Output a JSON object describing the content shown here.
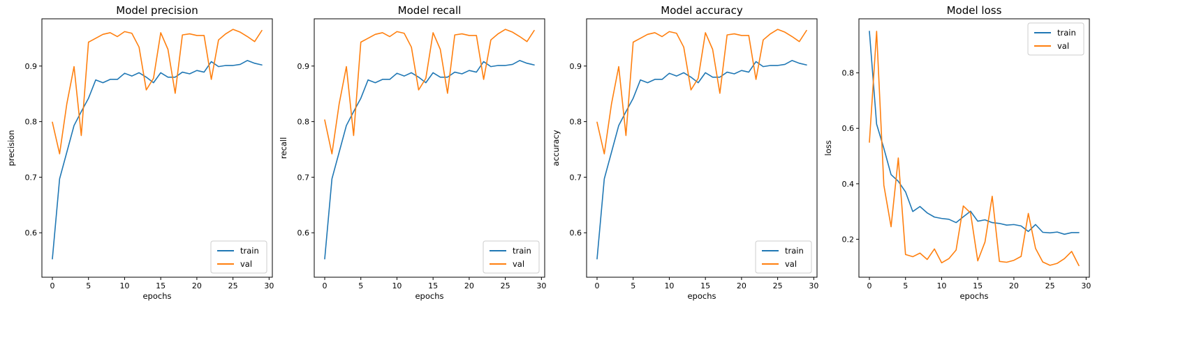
{
  "chart_data": [
    {
      "type": "line",
      "title": "Model precision",
      "xlabel": "epochs",
      "ylabel": "precision",
      "xlim": [
        -1.45,
        30.45
      ],
      "ylim": [
        0.52,
        0.985
      ],
      "xticks": [
        0,
        5,
        10,
        15,
        20,
        25,
        30
      ],
      "yticks": [
        0.6,
        0.7,
        0.8,
        0.9
      ],
      "ytick_labels": [
        "0.6",
        "0.7",
        "0.8",
        "0.9"
      ],
      "legend_position": "lower-right",
      "x": [
        0,
        1,
        2,
        3,
        4,
        5,
        6,
        7,
        8,
        9,
        10,
        11,
        12,
        13,
        14,
        15,
        16,
        17,
        18,
        19,
        20,
        21,
        22,
        23,
        24,
        25,
        26,
        27,
        28,
        29
      ],
      "series": [
        {
          "name": "train",
          "color": "#1f77b4",
          "values": [
            0.553,
            0.697,
            0.745,
            0.793,
            0.818,
            0.842,
            0.875,
            0.87,
            0.876,
            0.876,
            0.887,
            0.882,
            0.888,
            0.88,
            0.87,
            0.888,
            0.88,
            0.88,
            0.889,
            0.886,
            0.892,
            0.889,
            0.908,
            0.899,
            0.901,
            0.901,
            0.903,
            0.91,
            0.905,
            0.902
          ]
        },
        {
          "name": "val",
          "color": "#ff7f0e",
          "values": [
            0.799,
            0.742,
            0.832,
            0.899,
            0.775,
            0.943,
            0.95,
            0.957,
            0.96,
            0.953,
            0.962,
            0.959,
            0.934,
            0.857,
            0.878,
            0.96,
            0.93,
            0.851,
            0.956,
            0.958,
            0.955,
            0.955,
            0.876,
            0.947,
            0.958,
            0.966,
            0.961,
            0.953,
            0.944,
            0.964
          ]
        }
      ]
    },
    {
      "type": "line",
      "title": "Model recall",
      "xlabel": "epochs",
      "ylabel": "recall",
      "xlim": [
        -1.45,
        30.45
      ],
      "ylim": [
        0.52,
        0.985
      ],
      "xticks": [
        0,
        5,
        10,
        15,
        20,
        25,
        30
      ],
      "yticks": [
        0.6,
        0.7,
        0.8,
        0.9
      ],
      "ytick_labels": [
        "0.6",
        "0.7",
        "0.8",
        "0.9"
      ],
      "legend_position": "lower-right",
      "x": [
        0,
        1,
        2,
        3,
        4,
        5,
        6,
        7,
        8,
        9,
        10,
        11,
        12,
        13,
        14,
        15,
        16,
        17,
        18,
        19,
        20,
        21,
        22,
        23,
        24,
        25,
        26,
        27,
        28,
        29
      ],
      "series": [
        {
          "name": "train",
          "color": "#1f77b4",
          "values": [
            0.553,
            0.697,
            0.745,
            0.793,
            0.818,
            0.842,
            0.875,
            0.87,
            0.876,
            0.876,
            0.887,
            0.882,
            0.888,
            0.88,
            0.87,
            0.888,
            0.88,
            0.88,
            0.889,
            0.886,
            0.892,
            0.889,
            0.908,
            0.899,
            0.901,
            0.901,
            0.903,
            0.91,
            0.905,
            0.902
          ]
        },
        {
          "name": "val",
          "color": "#ff7f0e",
          "values": [
            0.803,
            0.742,
            0.832,
            0.899,
            0.775,
            0.943,
            0.95,
            0.957,
            0.96,
            0.953,
            0.962,
            0.959,
            0.934,
            0.857,
            0.878,
            0.96,
            0.93,
            0.851,
            0.956,
            0.958,
            0.955,
            0.955,
            0.876,
            0.947,
            0.958,
            0.966,
            0.961,
            0.953,
            0.944,
            0.964
          ]
        }
      ]
    },
    {
      "type": "line",
      "title": "Model accuracy",
      "xlabel": "epochs",
      "ylabel": "accuracy",
      "xlim": [
        -1.45,
        30.45
      ],
      "ylim": [
        0.52,
        0.985
      ],
      "xticks": [
        0,
        5,
        10,
        15,
        20,
        25,
        30
      ],
      "yticks": [
        0.6,
        0.7,
        0.8,
        0.9
      ],
      "ytick_labels": [
        "0.6",
        "0.7",
        "0.8",
        "0.9"
      ],
      "legend_position": "lower-right",
      "x": [
        0,
        1,
        2,
        3,
        4,
        5,
        6,
        7,
        8,
        9,
        10,
        11,
        12,
        13,
        14,
        15,
        16,
        17,
        18,
        19,
        20,
        21,
        22,
        23,
        24,
        25,
        26,
        27,
        28,
        29
      ],
      "series": [
        {
          "name": "train",
          "color": "#1f77b4",
          "values": [
            0.553,
            0.697,
            0.745,
            0.793,
            0.818,
            0.842,
            0.875,
            0.87,
            0.876,
            0.876,
            0.887,
            0.882,
            0.888,
            0.88,
            0.87,
            0.888,
            0.88,
            0.88,
            0.889,
            0.886,
            0.892,
            0.889,
            0.908,
            0.899,
            0.901,
            0.901,
            0.903,
            0.91,
            0.905,
            0.902
          ]
        },
        {
          "name": "val",
          "color": "#ff7f0e",
          "values": [
            0.799,
            0.742,
            0.832,
            0.899,
            0.775,
            0.943,
            0.95,
            0.957,
            0.96,
            0.953,
            0.962,
            0.959,
            0.934,
            0.857,
            0.878,
            0.96,
            0.93,
            0.851,
            0.956,
            0.958,
            0.955,
            0.955,
            0.876,
            0.947,
            0.958,
            0.966,
            0.961,
            0.953,
            0.944,
            0.964
          ]
        }
      ]
    },
    {
      "type": "line",
      "title": "Model loss",
      "xlabel": "epochs",
      "ylabel": "loss",
      "xlim": [
        -1.45,
        30.45
      ],
      "ylim": [
        0.063,
        0.995
      ],
      "xticks": [
        0,
        5,
        10,
        15,
        20,
        25,
        30
      ],
      "yticks": [
        0.2,
        0.4,
        0.6,
        0.8
      ],
      "ytick_labels": [
        "0.2",
        "0.4",
        "0.6",
        "0.8"
      ],
      "legend_position": "upper-right",
      "x": [
        0,
        1,
        2,
        3,
        4,
        5,
        6,
        7,
        8,
        9,
        10,
        11,
        12,
        13,
        14,
        15,
        16,
        17,
        18,
        19,
        20,
        21,
        22,
        23,
        24,
        25,
        26,
        27,
        28,
        29
      ],
      "series": [
        {
          "name": "train",
          "color": "#1f77b4",
          "values": [
            0.95,
            0.615,
            0.528,
            0.433,
            0.409,
            0.371,
            0.3,
            0.318,
            0.295,
            0.28,
            0.275,
            0.272,
            0.26,
            0.281,
            0.301,
            0.265,
            0.27,
            0.26,
            0.257,
            0.251,
            0.253,
            0.248,
            0.228,
            0.253,
            0.225,
            0.223,
            0.226,
            0.218,
            0.224,
            0.224
          ]
        },
        {
          "name": "val",
          "color": "#ff7f0e",
          "values": [
            0.55,
            0.95,
            0.395,
            0.245,
            0.493,
            0.145,
            0.137,
            0.15,
            0.127,
            0.165,
            0.115,
            0.13,
            0.161,
            0.32,
            0.295,
            0.122,
            0.19,
            0.355,
            0.12,
            0.117,
            0.124,
            0.138,
            0.293,
            0.167,
            0.118,
            0.106,
            0.113,
            0.13,
            0.156,
            0.105
          ]
        }
      ]
    }
  ]
}
